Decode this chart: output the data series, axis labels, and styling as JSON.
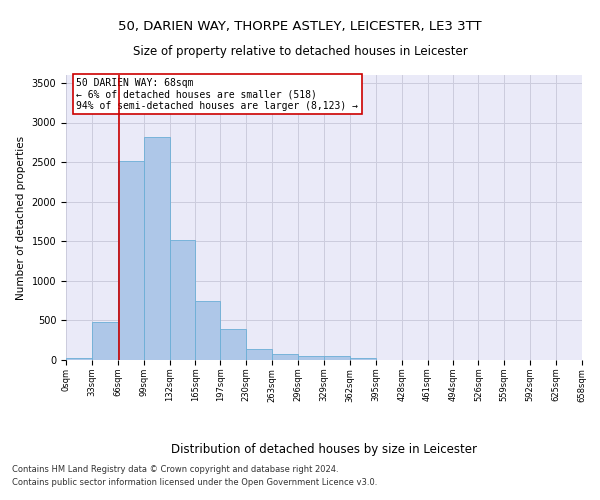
{
  "title": "50, DARIEN WAY, THORPE ASTLEY, LEICESTER, LE3 3TT",
  "subtitle": "Size of property relative to detached houses in Leicester",
  "xlabel": "Distribution of detached houses by size in Leicester",
  "ylabel": "Number of detached properties",
  "bar_values": [
    25,
    480,
    2510,
    2820,
    1520,
    750,
    390,
    145,
    75,
    55,
    55,
    30,
    0,
    0,
    0,
    0,
    0,
    0,
    0,
    0
  ],
  "bin_edges": [
    0,
    33,
    66,
    99,
    132,
    165,
    197,
    230,
    263,
    296,
    329,
    362,
    395,
    428,
    461,
    494,
    526,
    559,
    592,
    625,
    658
  ],
  "tick_labels": [
    "0sqm",
    "33sqm",
    "66sqm",
    "99sqm",
    "132sqm",
    "165sqm",
    "197sqm",
    "230sqm",
    "263sqm",
    "296sqm",
    "329sqm",
    "362sqm",
    "395sqm",
    "428sqm",
    "461sqm",
    "494sqm",
    "526sqm",
    "559sqm",
    "592sqm",
    "625sqm",
    "658sqm"
  ],
  "bar_color": "#aec7e8",
  "bar_edge_color": "#6baed6",
  "vline_x": 68,
  "vline_color": "#cc0000",
  "annotation_text_line1": "50 DARIEN WAY: 68sqm",
  "annotation_text_line2": "← 6% of detached houses are smaller (518)",
  "annotation_text_line3": "94% of semi-detached houses are larger (8,123) →",
  "annotation_color": "#cc0000",
  "ylim": [
    0,
    3600
  ],
  "yticks": [
    0,
    500,
    1000,
    1500,
    2000,
    2500,
    3000,
    3500
  ],
  "grid_color": "#ccccdd",
  "bg_color": "#eaeaf8",
  "footnote1": "Contains HM Land Registry data © Crown copyright and database right 2024.",
  "footnote2": "Contains public sector information licensed under the Open Government Licence v3.0.",
  "title_fontsize": 9.5,
  "subtitle_fontsize": 8.5,
  "xlabel_fontsize": 8.5,
  "ylabel_fontsize": 7.5,
  "footnote_fontsize": 6,
  "tick_fontsize": 6,
  "ytick_fontsize": 7
}
